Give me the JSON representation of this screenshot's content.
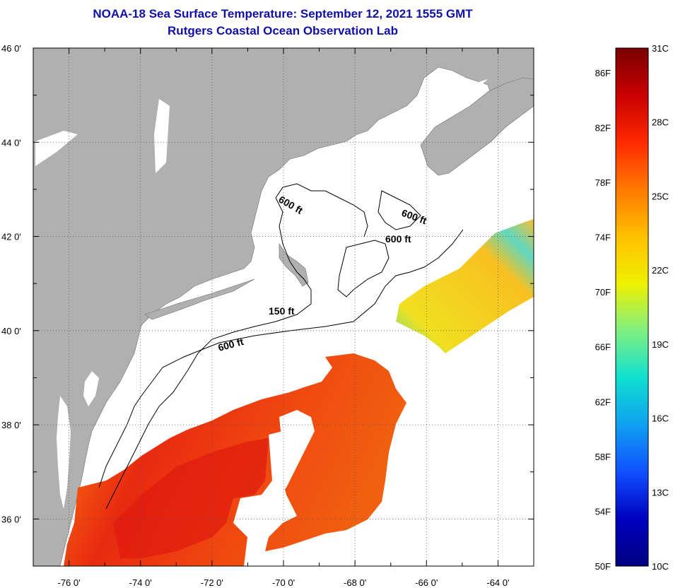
{
  "title": "NOAA-18 Sea Surface Temperature:  September 12, 2021 1555 GMT",
  "subtitle": "Rutgers Coastal Ocean Observation Lab",
  "map": {
    "lat_labels": [
      "46 0'",
      "44 0'",
      "42 0'",
      "40 0'",
      "38 0'",
      "36 0'"
    ],
    "lon_labels": [
      "-76 0'",
      "-74 0'",
      "-72 0'",
      "-70 0'",
      "-68 0'",
      "-66 0'",
      "-64 0'"
    ],
    "contour_labels": [
      "600 ft",
      "600 ft",
      "600 ft",
      "150 ft",
      "600 ft"
    ],
    "colors": {
      "land": "#b0b0b0",
      "ocean": "#ffffff",
      "grid": "#555555"
    }
  },
  "colorbar": {
    "fahrenheit": [
      "86F",
      "82F",
      "78F",
      "74F",
      "70F",
      "66F",
      "62F",
      "58F",
      "54F",
      "50F"
    ],
    "celsius": [
      "31C",
      "28C",
      "25C",
      "22C",
      "19C",
      "16C",
      "13C",
      "10C"
    ],
    "gradient": [
      "#7a0000",
      "#c80000",
      "#ff2a00",
      "#ff7a00",
      "#ffc000",
      "#f0f000",
      "#80f080",
      "#10e0d0",
      "#10a0f0",
      "#1050ff",
      "#0000c0",
      "#000080"
    ]
  }
}
